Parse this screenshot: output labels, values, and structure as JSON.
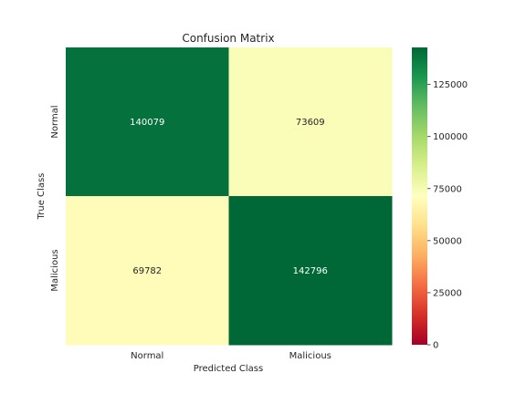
{
  "chart_data": {
    "type": "heatmap",
    "title": "Confusion Matrix",
    "xlabel": "Predicted Class",
    "ylabel": "True Class",
    "x_categories": [
      "Normal",
      "Malicious"
    ],
    "y_categories": [
      "Normal",
      "Malicious"
    ],
    "values": [
      [
        140079,
        73609
      ],
      [
        69782,
        142796
      ]
    ],
    "colormap": "RdYlGn",
    "colorbar": {
      "vmin": 0,
      "vmax": 142796,
      "ticks": [
        0,
        25000,
        50000,
        75000,
        100000,
        125000
      ]
    }
  }
}
